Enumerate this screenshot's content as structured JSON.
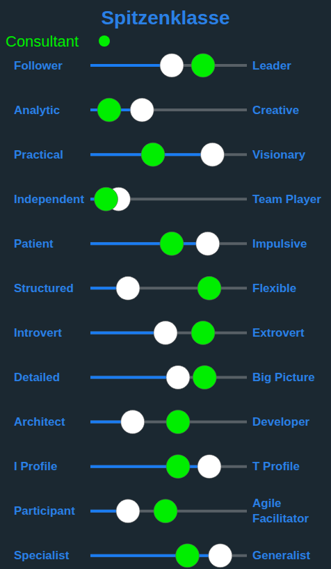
{
  "chart_data": {
    "type": "slider",
    "title": "Spitzenklasse",
    "categories": [
      "Follower",
      "Analytic",
      "Practical",
      "Independent",
      "Patient",
      "Structured",
      "Introvert",
      "Detailed",
      "Architect",
      "I Profile",
      "Participant",
      "Specialist"
    ],
    "right_labels": [
      "Leader",
      "Creative",
      "Visionary",
      "Team Player",
      "Impulsive",
      "Flexible",
      "Extrovert",
      "Big Picture",
      "Developer",
      "T Profile",
      "Agile Facilitator",
      "Generalist"
    ],
    "series": [
      {
        "color": "#ffffff",
        "marker": "circle",
        "values": [
          52,
          33,
          78,
          18,
          75,
          24,
          48,
          56,
          27,
          76,
          24,
          83
        ]
      },
      {
        "name": "Consultant",
        "color": "#00ee00",
        "marker": "circle",
        "values": [
          72,
          12,
          40,
          10,
          52,
          76,
          72,
          73,
          56,
          56,
          48,
          62
        ]
      }
    ],
    "xlim": [
      0,
      100
    ],
    "tick_labels": false,
    "grid": false
  }
}
